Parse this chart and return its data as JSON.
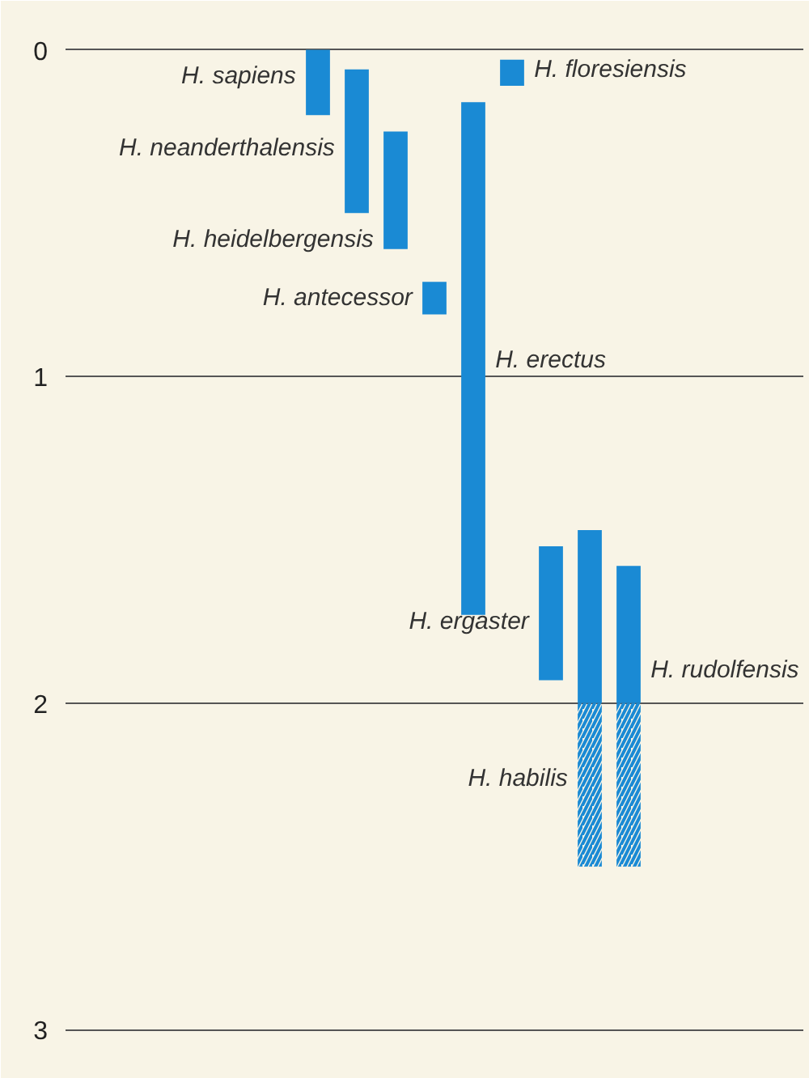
{
  "chart_data": {
    "type": "bar",
    "categories": [
      null,
      null,
      null,
      null,
      null,
      null,
      null,
      null,
      null,
      null,
      null,
      null,
      null,
      null,
      null,
      null,
      null,
      null,
      null
    ],
    "series": [
      {
        "color": "#1a8ad4",
        "base": [
          null,
          null,
          null,
          null,
          null,
          null,
          0,
          0.06,
          0.25,
          0.71,
          0.16,
          0.03,
          1.52,
          1.47,
          1.58,
          null,
          null,
          null,
          null
        ],
        "values": [
          null,
          null,
          null,
          null,
          null,
          null,
          0.2,
          0.44,
          0.36,
          0.1,
          1.57,
          0.08,
          0.41,
          0.53,
          0.42,
          null,
          null,
          null,
          null
        ]
      },
      {
        "color": "#1a8ad4",
        "base": [
          null,
          null,
          null,
          null,
          null,
          null,
          null,
          null,
          null,
          null,
          null,
          null,
          null,
          2,
          2,
          null,
          null,
          null,
          null
        ],
        "values": [
          null,
          null,
          null,
          null,
          null,
          null,
          null,
          null,
          null,
          null,
          null,
          null,
          null,
          0.5,
          0.5,
          null,
          null,
          null,
          null
        ]
      }
    ],
    "annotations": [
      "H. sapiens",
      "H. neanderthalensis",
      "H. heidelbergensis",
      "H. antecessor",
      "H. erectus",
      "H. floresiensis",
      "H. ergaster",
      "H. habilis",
      "H. rudolfensis"
    ],
    "ylim": [
      3.15,
      -0.15
    ],
    "yticks": [
      0,
      1,
      2,
      3
    ],
    "grid": "y",
    "tick_labels": "y"
  }
}
